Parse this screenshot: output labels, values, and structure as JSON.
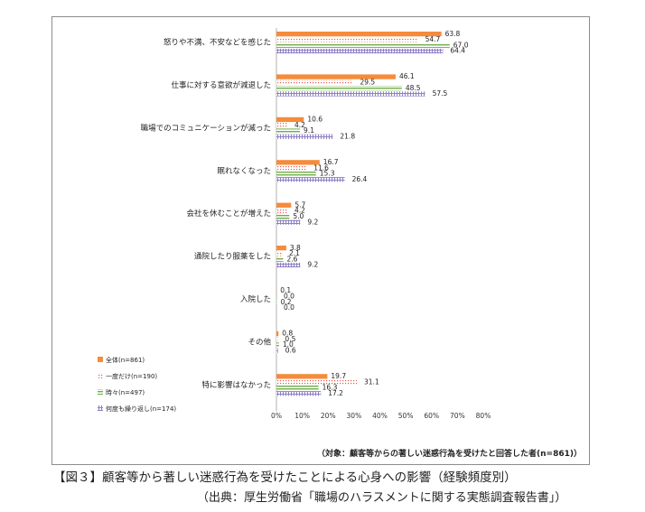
{
  "chart_data": {
    "type": "bar",
    "orientation": "horizontal",
    "categories": [
      "怒りや不満、不安などを感じた",
      "仕事に対する意欲が減退した",
      "職場でのコミュニケーションが減った",
      "眠れなくなった",
      "会社を休むことが増えた",
      "通院したり服薬をした",
      "入院した",
      "その他",
      "特に影響はなかった"
    ],
    "series": [
      {
        "name": "全体(n=861)",
        "color": "#f58b3c",
        "pattern": "solid",
        "values": [
          63.8,
          46.1,
          10.6,
          16.7,
          5.7,
          3.8,
          0.1,
          0.8,
          19.7
        ]
      },
      {
        "name": "一度だけ(n=190)",
        "color": "#e8584a",
        "pattern": "dots",
        "values": [
          54.7,
          29.5,
          4.2,
          11.6,
          4.2,
          2.1,
          0.0,
          0.5,
          31.1
        ]
      },
      {
        "name": "時々(n=497)",
        "color": "#6fae48",
        "pattern": "hlines",
        "values": [
          67.0,
          48.5,
          9.1,
          15.3,
          5.0,
          2.6,
          0.2,
          1.0,
          16.3
        ]
      },
      {
        "name": "何度も繰り返し(n=174)",
        "color": "#8f7fc4",
        "pattern": "grid",
        "values": [
          64.4,
          57.5,
          21.8,
          26.4,
          9.2,
          9.2,
          0.0,
          0.6,
          17.2
        ]
      }
    ],
    "value_labels": [
      [
        "63.8",
        "46.1",
        "10.6",
        "16.7",
        "5.7",
        "3.8",
        "0.1",
        "0.8",
        "19.7"
      ],
      [
        "54.7",
        "29.5",
        "4.2",
        "11.6",
        "4.2",
        "2.1",
        "0.0",
        "0.5",
        "31.1"
      ],
      [
        "67.0",
        "48.5",
        "9.1",
        "15.3",
        "5.0",
        "2.6",
        "0.2",
        "1.0",
        "16.3"
      ],
      [
        "64.4",
        "57.5",
        "21.8",
        "26.4",
        "9.2",
        "9.2",
        "0.0",
        "0.6",
        "17.2"
      ]
    ],
    "xlim": [
      0,
      80
    ],
    "x_ticks": [
      "0%",
      "10%",
      "20%",
      "30%",
      "40%",
      "50%",
      "60%",
      "70%",
      "80%"
    ],
    "grid": false,
    "legend_position": "bottom-left",
    "note": "（対象：顧客等からの著しい迷惑行為を受けたと回答した者(n=861)）"
  },
  "caption": {
    "title": "【図３】顧客等から著しい迷惑行為を受けたことによる心身への影響（経験頻度別）",
    "source": "（出典：厚生労働省「職場のハラスメントに関する実態調査報告書」）"
  }
}
